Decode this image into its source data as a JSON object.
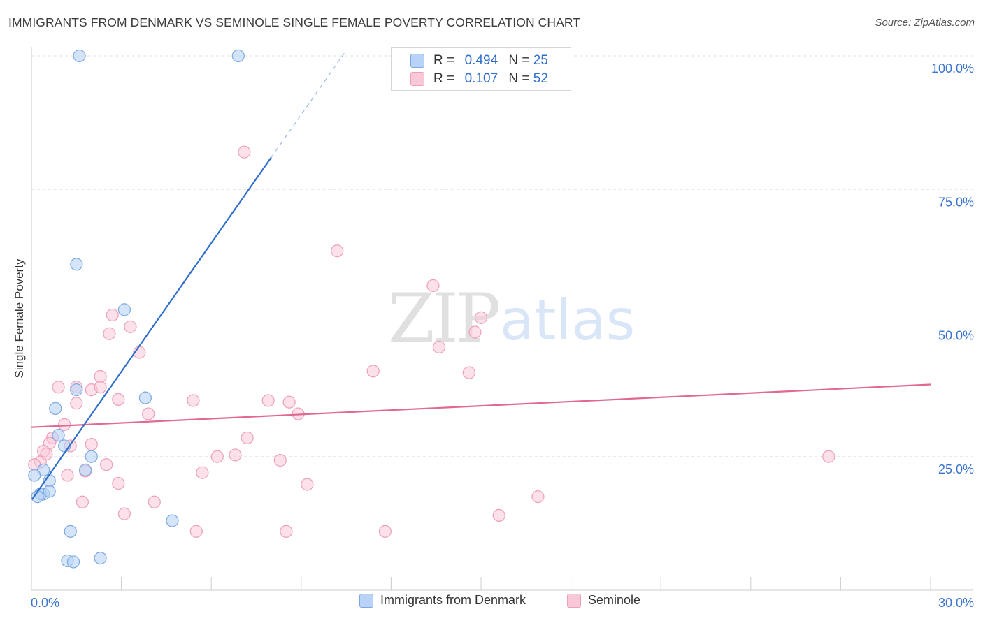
{
  "title": "IMMIGRANTS FROM DENMARK VS SEMINOLE SINGLE FEMALE POVERTY CORRELATION CHART",
  "source": "Source: ZipAtlas.com",
  "watermark": {
    "zip": "ZIP",
    "atlas": "atlas"
  },
  "legend_top": [
    {
      "r_label": "R =",
      "r_value": "0.494",
      "n_label": "N =",
      "n_value": "25"
    },
    {
      "r_label": "R =",
      "r_value": "0.107",
      "n_label": "N =",
      "n_value": "52"
    }
  ],
  "colors": {
    "blue_fill": "#b8d3f7",
    "blue_stroke": "#7ea9e0",
    "blue_line": "#2f6ecb",
    "pink_fill": "#f9c8d8",
    "pink_stroke": "#ee9fba",
    "pink_line": "#e06893",
    "tick_label": "#3a74cf",
    "grid": "#e2e2e2"
  },
  "chart_data": {
    "type": "scatter",
    "title": "IMMIGRANTS FROM DENMARK VS SEMINOLE SINGLE FEMALE POVERTY CORRELATION CHART",
    "xlabel": "",
    "ylabel": "Single Female Poverty",
    "xlim": [
      0,
      30
    ],
    "ylim": [
      0,
      100
    ],
    "x_tick_labels": [
      {
        "value": 0,
        "label": "0.0%"
      },
      {
        "value": 30,
        "label": "30.0%"
      }
    ],
    "y_tick_labels": [
      {
        "value": 25,
        "label": "25.0%"
      },
      {
        "value": 50,
        "label": "50.0%"
      },
      {
        "value": 75,
        "label": "75.0%"
      },
      {
        "value": 100,
        "label": "100.0%"
      }
    ],
    "series": [
      {
        "name": "Immigrants from Denmark",
        "color": "blue",
        "r": 0.494,
        "n": 25,
        "trendline": {
          "x_start": 0.02,
          "y_start": 17,
          "x_solid_end": 8.0,
          "y_solid_end": 81,
          "x_dash_end": 10.5,
          "y_dash_end": 101
        },
        "points": [
          [
            1.6,
            100
          ],
          [
            6.9,
            100
          ],
          [
            1.5,
            61
          ],
          [
            3.1,
            52.5
          ],
          [
            1.5,
            37.5
          ],
          [
            3.8,
            36
          ],
          [
            0.8,
            34
          ],
          [
            0.9,
            29
          ],
          [
            1.1,
            27
          ],
          [
            0.4,
            22.5
          ],
          [
            1.8,
            22.5
          ],
          [
            2.0,
            25
          ],
          [
            0.6,
            20.5
          ],
          [
            0.1,
            21.5
          ],
          [
            0.4,
            18
          ],
          [
            0.3,
            18
          ],
          [
            0.2,
            17.5
          ],
          [
            0.6,
            18.5
          ],
          [
            4.7,
            13
          ],
          [
            1.3,
            11
          ],
          [
            1.2,
            5.5
          ],
          [
            1.4,
            5.3
          ],
          [
            2.3,
            6
          ]
        ]
      },
      {
        "name": "Seminole",
        "color": "pink",
        "r": 0.107,
        "n": 52,
        "trendline": {
          "x_start": 0,
          "y_start": 30.5,
          "x_end": 30,
          "y_end": 38.5
        },
        "points": [
          [
            7.1,
            82
          ],
          [
            10.2,
            63.5
          ],
          [
            13.4,
            57
          ],
          [
            2.7,
            51.5
          ],
          [
            15.0,
            51
          ],
          [
            2.6,
            48
          ],
          [
            3.3,
            49.3
          ],
          [
            14.8,
            48.3
          ],
          [
            13.6,
            45.5
          ],
          [
            3.6,
            44.5
          ],
          [
            11.4,
            41
          ],
          [
            14.6,
            40.7
          ],
          [
            2.3,
            40
          ],
          [
            0.9,
            38
          ],
          [
            1.5,
            38
          ],
          [
            2.0,
            37.5
          ],
          [
            2.3,
            38
          ],
          [
            1.5,
            35
          ],
          [
            2.9,
            35.7
          ],
          [
            5.4,
            35.5
          ],
          [
            7.9,
            35.5
          ],
          [
            8.6,
            35.2
          ],
          [
            3.9,
            33
          ],
          [
            8.9,
            33
          ],
          [
            1.1,
            31
          ],
          [
            0.7,
            28.5
          ],
          [
            0.6,
            27.5
          ],
          [
            1.3,
            27
          ],
          [
            2.0,
            27.3
          ],
          [
            7.2,
            28.5
          ],
          [
            0.4,
            26
          ],
          [
            0.5,
            25.5
          ],
          [
            6.2,
            25
          ],
          [
            6.8,
            25.3
          ],
          [
            8.3,
            24.3
          ],
          [
            0.3,
            24
          ],
          [
            0.1,
            23.5
          ],
          [
            2.5,
            23.5
          ],
          [
            1.8,
            22.3
          ],
          [
            5.7,
            22
          ],
          [
            1.2,
            21.5
          ],
          [
            2.9,
            20
          ],
          [
            9.2,
            19.8
          ],
          [
            16.9,
            17.5
          ],
          [
            1.7,
            16.5
          ],
          [
            4.1,
            16.5
          ],
          [
            3.1,
            14.3
          ],
          [
            15.6,
            14
          ],
          [
            5.5,
            11
          ],
          [
            8.5,
            11
          ],
          [
            11.8,
            11
          ],
          [
            26.6,
            25
          ]
        ]
      }
    ]
  },
  "bottom_legend": [
    {
      "label": "Immigrants from Denmark"
    },
    {
      "label": "Seminole"
    }
  ]
}
